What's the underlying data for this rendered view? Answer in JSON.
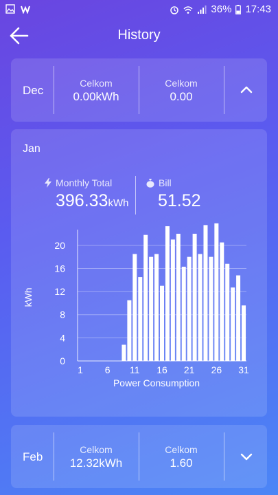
{
  "status_bar": {
    "battery": "36%",
    "time": "17:43",
    "icons": [
      "gallery-icon",
      "w-app-icon",
      "alarm-icon",
      "wifi-icon",
      "signal-icon",
      "battery-icon"
    ]
  },
  "header": {
    "title": "History",
    "back_icon": "arrow-left-icon"
  },
  "months": {
    "dec": {
      "label": "Dec",
      "stat1_label": "Celkom",
      "stat1_value": "0.00kWh",
      "stat2_label": "Celkom",
      "stat2_value": "0.00",
      "toggle_icon": "chevron-up-icon"
    },
    "jan": {
      "label": "Jan",
      "monthly_total_label": "Monthly Total",
      "monthly_total_value": "396.33",
      "monthly_total_unit": "kWh",
      "bill_label": "Bill",
      "bill_value": "51.52"
    },
    "feb": {
      "label": "Feb",
      "stat1_label": "Celkom",
      "stat1_value": "12.32kWh",
      "stat2_label": "Celkom",
      "stat2_value": "1.60",
      "toggle_icon": "chevron-down-icon"
    }
  },
  "chart_data": {
    "type": "bar",
    "xlabel": "Power Consumption",
    "ylabel": "kWh",
    "ylim": [
      0,
      22
    ],
    "yticks": [
      0,
      4,
      8,
      12,
      16,
      20
    ],
    "xticks": [
      1,
      6,
      11,
      16,
      21,
      26,
      31
    ],
    "grid": "horizontal",
    "categories": [
      1,
      2,
      3,
      4,
      5,
      6,
      7,
      8,
      9,
      10,
      11,
      12,
      13,
      14,
      15,
      16,
      17,
      18,
      19,
      20,
      21,
      22,
      23,
      24,
      25,
      26,
      27,
      28,
      29,
      30,
      31
    ],
    "values": [
      0,
      0,
      0,
      0,
      0,
      0,
      0,
      0,
      2.8,
      10.5,
      18.5,
      14.5,
      21.8,
      18,
      18.5,
      13,
      23.3,
      21,
      22,
      16.3,
      18,
      22,
      18.5,
      23.5,
      18,
      23.8,
      20.5,
      16.8,
      12.7,
      14.8,
      9.6
    ]
  }
}
